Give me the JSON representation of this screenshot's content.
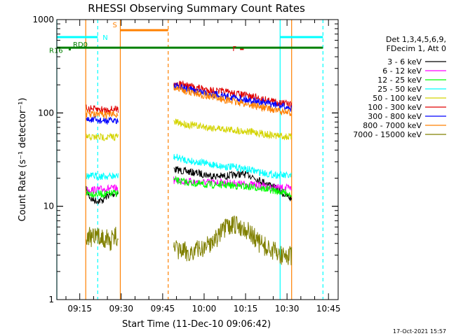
{
  "chart_data": {
    "type": "line",
    "title": "RHESSI Observing Summary Count Rates",
    "xlabel": "Start Time (11-Dec-10 09:06:42)",
    "ylabel": "Count Rate (s⁻¹ detector⁻¹)",
    "yscale": "log",
    "ylim": [
      1,
      1000
    ],
    "xlim": [
      "09:06:42",
      "10:48:30"
    ],
    "x_ticks": [
      "09:15",
      "09:30",
      "09:45",
      "10:00",
      "10:15",
      "10:30",
      "10:45"
    ],
    "y_ticks": [
      "1",
      "10",
      "100",
      "1000"
    ],
    "legend_position": "right",
    "legend_header": [
      "Det 1,3,4,5,6,9,",
      "FDecim 1, Att 0"
    ],
    "timestamp": "17-Oct-2021 15:57",
    "series": [
      {
        "name": "3 - 6 keV",
        "color": "#000000",
        "segments": [
          {
            "x": [
              "09:17:20",
              "09:19:00",
              "09:21:00",
              "09:23:00",
              "09:25:00",
              "09:27:00",
              "09:29:00"
            ],
            "y": [
              15,
              12,
              11.5,
              11.5,
              13,
              13.5,
              14
            ]
          },
          {
            "x": [
              "09:49:00",
              "09:52:00",
              "09:56:00",
              "10:00:00",
              "10:04:00",
              "10:08:00",
              "10:12:00",
              "10:16:00",
              "10:20:00",
              "10:24:00",
              "10:28:00",
              "10:31:40"
            ],
            "y": [
              25,
              24,
              23,
              22,
              21,
              21,
              22,
              22,
              19,
              17,
              14,
              12
            ]
          }
        ]
      },
      {
        "name": "6 - 12 keV",
        "color": "#ff00ff",
        "segments": [
          {
            "x": [
              "09:17:20",
              "09:21:00",
              "09:25:00",
              "09:29:00"
            ],
            "y": [
              15,
              15,
              15.5,
              15.5
            ]
          },
          {
            "x": [
              "09:49:00",
              "09:54:00",
              "10:00:00",
              "10:06:00",
              "10:12:00",
              "10:18:00",
              "10:24:00",
              "10:31:40"
            ],
            "y": [
              19,
              18.5,
              18,
              18,
              17.5,
              17,
              16,
              15.5
            ]
          }
        ]
      },
      {
        "name": "12 - 25 keV",
        "color": "#00ff00",
        "segments": [
          {
            "x": [
              "09:17:20",
              "09:21:00",
              "09:25:00",
              "09:29:00"
            ],
            "y": [
              14,
              13.5,
              13.5,
              14
            ]
          },
          {
            "x": [
              "09:49:00",
              "09:54:00",
              "10:00:00",
              "10:06:00",
              "10:12:00",
              "10:18:00",
              "10:24:00",
              "10:31:40"
            ],
            "y": [
              19,
              18,
              17,
              17,
              16.5,
              16,
              15,
              13.5
            ]
          }
        ]
      },
      {
        "name": "25 - 50 keV",
        "color": "#00ffff",
        "segments": [
          {
            "x": [
              "09:17:20",
              "09:21:00",
              "09:25:00",
              "09:29:00"
            ],
            "y": [
              21,
              21,
              21,
              21
            ]
          },
          {
            "x": [
              "09:49:00",
              "09:54:00",
              "10:00:00",
              "10:06:00",
              "10:12:00",
              "10:18:00",
              "10:24:00",
              "10:31:40"
            ],
            "y": [
              34,
              31,
              29,
              27,
              26,
              24,
              22,
              21
            ]
          }
        ]
      },
      {
        "name": "50 - 100 keV",
        "color": "#d4d400",
        "segments": [
          {
            "x": [
              "09:17:20",
              "09:21:00",
              "09:25:00",
              "09:29:00"
            ],
            "y": [
              55,
              55,
              55,
              56
            ]
          },
          {
            "x": [
              "09:49:00",
              "09:54:00",
              "10:00:00",
              "10:06:00",
              "10:12:00",
              "10:18:00",
              "10:24:00",
              "10:31:40"
            ],
            "y": [
              80,
              75,
              71,
              68,
              65,
              62,
              58,
              55
            ]
          }
        ]
      },
      {
        "name": "100 - 300 keV",
        "color": "#e00000",
        "segments": [
          {
            "x": [
              "09:17:20",
              "09:21:00",
              "09:25:00",
              "09:29:00"
            ],
            "y": [
              112,
              109,
              108,
              110
            ]
          },
          {
            "x": [
              "09:49:00",
              "09:54:00",
              "10:00:00",
              "10:06:00",
              "10:12:00",
              "10:18:00",
              "10:24:00",
              "10:31:40"
            ],
            "y": [
              210,
              195,
              180,
              170,
              160,
              148,
              135,
              122
            ]
          }
        ]
      },
      {
        "name": "300 - 800 keV",
        "color": "#0000ff",
        "segments": [
          {
            "x": [
              "09:17:20",
              "09:21:00",
              "09:25:00",
              "09:29:00"
            ],
            "y": [
              85,
              83,
              82,
              84
            ]
          },
          {
            "x": [
              "09:49:00",
              "09:54:00",
              "10:00:00",
              "10:06:00",
              "10:12:00",
              "10:18:00",
              "10:24:00",
              "10:31:40"
            ],
            "y": [
              195,
              180,
              165,
              155,
              145,
              135,
              125,
              112
            ]
          }
        ]
      },
      {
        "name": "800 - 7000 keV",
        "color": "#ff8000",
        "segments": [
          {
            "x": [
              "09:17:20",
              "09:21:00",
              "09:25:00",
              "09:29:00"
            ],
            "y": [
              98,
              96,
              95,
              97
            ]
          },
          {
            "x": [
              "09:49:00",
              "09:54:00",
              "10:00:00",
              "10:06:00",
              "10:12:00",
              "10:18:00",
              "10:24:00",
              "10:31:40"
            ],
            "y": [
              185,
              170,
              155,
              142,
              130,
              120,
              110,
              98
            ]
          }
        ]
      },
      {
        "name": "7000 - 15000 keV",
        "color": "#808000",
        "segments": [
          {
            "x": [
              "09:17:20",
              "09:20:00",
              "09:23:00",
              "09:26:00",
              "09:29:00"
            ],
            "y": [
              5,
              4.5,
              4.8,
              4.2,
              5
            ]
          },
          {
            "x": [
              "09:49:00",
              "09:55:00",
              "10:00:00",
              "10:04:00",
              "10:08:00",
              "10:11:00",
              "10:14:00",
              "10:17:00",
              "10:20:00",
              "10:24:00",
              "10:28:00",
              "10:31:40"
            ],
            "y": [
              3.4,
              3.2,
              3.6,
              4.5,
              5.8,
              6.3,
              6.0,
              5.0,
              4.0,
              3.4,
              3.0,
              2.9
            ]
          }
        ]
      }
    ],
    "flags": [
      {
        "label": "N",
        "color": "#00ffff",
        "y": 650,
        "segments": [
          [
            "09:06:42",
            "09:21:30"
          ],
          [
            "10:27:30",
            "10:43:00"
          ]
        ]
      },
      {
        "label": "S",
        "color": "#ff8000",
        "y": 770,
        "segments": [
          [
            "09:29:40",
            "09:47:00"
          ]
        ]
      },
      {
        "label": "F",
        "color": "#e00000",
        "y": 485,
        "segments": [
          [
            "10:13:00",
            "10:14:20"
          ]
        ]
      },
      {
        "label": "RD0",
        "color": "#008000",
        "y": 500,
        "segments": [
          [
            "09:06:42",
            "10:43:00"
          ]
        ]
      },
      {
        "label": "R16",
        "color": "#008000",
        "y": 480,
        "segments": [
          [
            "09:11:00",
            "09:11:10"
          ]
        ]
      }
    ],
    "vlines": [
      {
        "time": "09:06:42",
        "color": "#00ffff",
        "style": "solid"
      },
      {
        "time": "09:21:30",
        "color": "#00ffff",
        "style": "dashed"
      },
      {
        "time": "09:29:40",
        "color": "#ff8000",
        "style": "solid"
      },
      {
        "time": "09:47:00",
        "color": "#ff8000",
        "style": "dashed"
      },
      {
        "time": "10:27:30",
        "color": "#00ffff",
        "style": "solid"
      },
      {
        "time": "10:31:40",
        "color": "#ff8000",
        "style": "solid"
      },
      {
        "time": "10:43:00",
        "color": "#00ffff",
        "style": "dashed"
      },
      {
        "time": "09:17:10",
        "color": "#ff8000",
        "style": "solid"
      }
    ]
  }
}
